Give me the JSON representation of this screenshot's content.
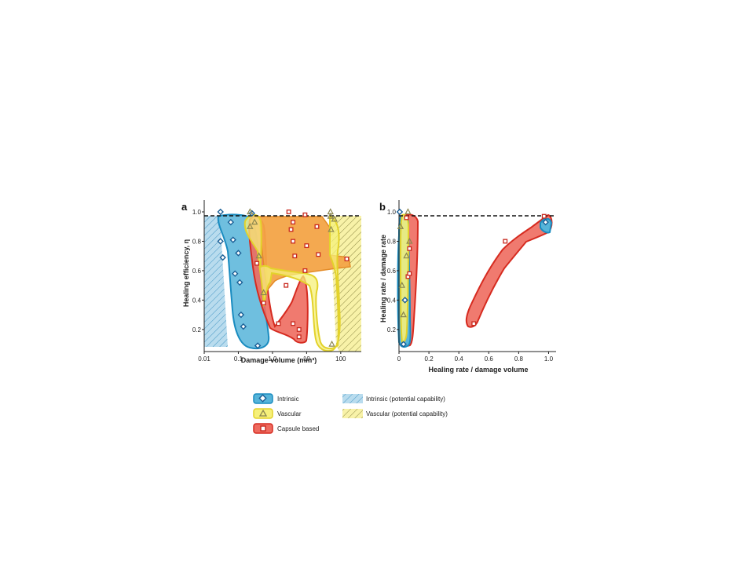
{
  "chart_data": [
    {
      "panel": "a",
      "type": "area",
      "xlabel": "Damage volume (mm³)",
      "ylabel": "Healing efficiency, η",
      "xscale": "log",
      "xlim": [
        0.01,
        400
      ],
      "ylim": [
        0.05,
        1.08
      ],
      "x_ticks": [
        0.01,
        0.1,
        1.0,
        10,
        100
      ],
      "x_tick_labels": [
        "0.01",
        "0.1",
        "1.0",
        "10",
        "100"
      ],
      "y_ticks": [
        0.2,
        0.4,
        0.6,
        0.8,
        1.0
      ],
      "y_tick_labels": [
        "0.2",
        "0.4",
        "0.6",
        "0.8",
        "1.0"
      ],
      "reference_line": {
        "y": 1.0,
        "style": "dashed"
      },
      "series": [
        {
          "name": "Intrinsic",
          "marker": "diamond",
          "points": [
            [
              0.03,
              1.0
            ],
            [
              0.03,
              0.8
            ],
            [
              0.035,
              0.69
            ],
            [
              0.06,
              0.93
            ],
            [
              0.07,
              0.81
            ],
            [
              0.08,
              0.58
            ],
            [
              0.1,
              0.72
            ],
            [
              0.11,
              0.52
            ],
            [
              0.12,
              0.3
            ],
            [
              0.14,
              0.22
            ],
            [
              0.25,
              0.99
            ],
            [
              0.37,
              0.09
            ]
          ]
        },
        {
          "name": "Vascular",
          "marker": "triangle",
          "points": [
            [
              0.22,
              1.0
            ],
            [
              0.22,
              0.9
            ],
            [
              0.3,
              0.93
            ],
            [
              0.4,
              0.7
            ],
            [
              0.55,
              0.45
            ],
            [
              50,
              1.0
            ],
            [
              50,
              0.97
            ],
            [
              52,
              0.88
            ],
            [
              65,
              0.95
            ],
            [
              55,
              0.1
            ]
          ]
        },
        {
          "name": "Capsule based",
          "marker": "square",
          "points": [
            [
              0.35,
              0.65
            ],
            [
              0.55,
              0.38
            ],
            [
              1.5,
              0.24
            ],
            [
              2.5,
              0.5
            ],
            [
              3,
              1.0
            ],
            [
              4,
              0.24
            ],
            [
              4,
              0.93
            ],
            [
              3.5,
              0.88
            ],
            [
              4,
              0.8
            ],
            [
              4.5,
              0.7
            ],
            [
              6,
              0.15
            ],
            [
              6,
              0.2
            ],
            [
              9,
              0.98
            ],
            [
              10,
              0.77
            ],
            [
              9,
              0.6
            ],
            [
              20,
              0.9
            ],
            [
              22,
              0.71
            ],
            [
              150,
              0.68
            ]
          ]
        }
      ],
      "regions": [
        "Intrinsic",
        "Vascular",
        "Capsule based",
        "Intrinsic (potential capability)",
        "Vascular (potential capability)"
      ]
    },
    {
      "panel": "b",
      "type": "area",
      "xlabel": "Healing rate / damage volume",
      "ylabel": "Healing rate / damage rate",
      "xlim": [
        0,
        1.05
      ],
      "ylim": [
        0.05,
        1.08
      ],
      "x_ticks": [
        0,
        0.2,
        0.4,
        0.6,
        0.8,
        1.0
      ],
      "x_tick_labels": [
        "0",
        "0.2",
        "0.4",
        "0.6",
        "0.8",
        "1.0"
      ],
      "y_ticks": [
        0.2,
        0.4,
        0.6,
        0.8,
        1.0
      ],
      "y_tick_labels": [
        "0.2",
        "0.4",
        "0.6",
        "0.8",
        "1.0"
      ],
      "reference_line": {
        "y": 1.0,
        "style": "dashed"
      },
      "series": [
        {
          "name": "Intrinsic",
          "marker": "diamond",
          "points": [
            [
              0.005,
              1.0
            ],
            [
              0.03,
              0.1
            ],
            [
              0.04,
              0.4
            ],
            [
              0.98,
              0.93
            ]
          ]
        },
        {
          "name": "Vascular",
          "marker": "triangle",
          "points": [
            [
              0.01,
              0.9
            ],
            [
              0.02,
              0.5
            ],
            [
              0.03,
              0.3
            ],
            [
              0.06,
              1.0
            ],
            [
              0.05,
              0.7
            ],
            [
              0.07,
              0.8
            ]
          ]
        },
        {
          "name": "Capsule based",
          "marker": "square",
          "points": [
            [
              0.05,
              0.96
            ],
            [
              0.06,
              0.56
            ],
            [
              0.07,
              0.75
            ],
            [
              0.07,
              0.58
            ],
            [
              0.5,
              0.24
            ],
            [
              0.71,
              0.8
            ],
            [
              0.97,
              0.97
            ]
          ]
        }
      ]
    }
  ],
  "legend": {
    "items": [
      {
        "label": "Intrinsic",
        "fill": "#56b4d9",
        "stroke": "#1a8cc0",
        "marker": "diamond",
        "marker_color": "#1a5f96"
      },
      {
        "label": "Vascular",
        "fill": "#f6f07a",
        "stroke": "#e3d22b",
        "marker": "triangle",
        "marker_color": "#8c8750"
      },
      {
        "label": "Capsule based",
        "fill": "#ee6b5f",
        "stroke": "#d62b20",
        "marker": "square",
        "marker_color": "#c8281e"
      },
      {
        "label": "Intrinsic (potential capability)",
        "pattern": "blue-hatch"
      },
      {
        "label": "Vascular (potential capability)",
        "pattern": "yellow-hatch"
      }
    ]
  },
  "colors": {
    "intrinsic_fill": "#56b4d9",
    "intrinsic_stroke": "#1a8cc0",
    "vascular_fill": "#f6f07a",
    "vascular_stroke": "#e3d22b",
    "capsule_fill": "#ee6b5f",
    "capsule_stroke": "#d62b20",
    "overlap_orange": "#f3a447"
  }
}
